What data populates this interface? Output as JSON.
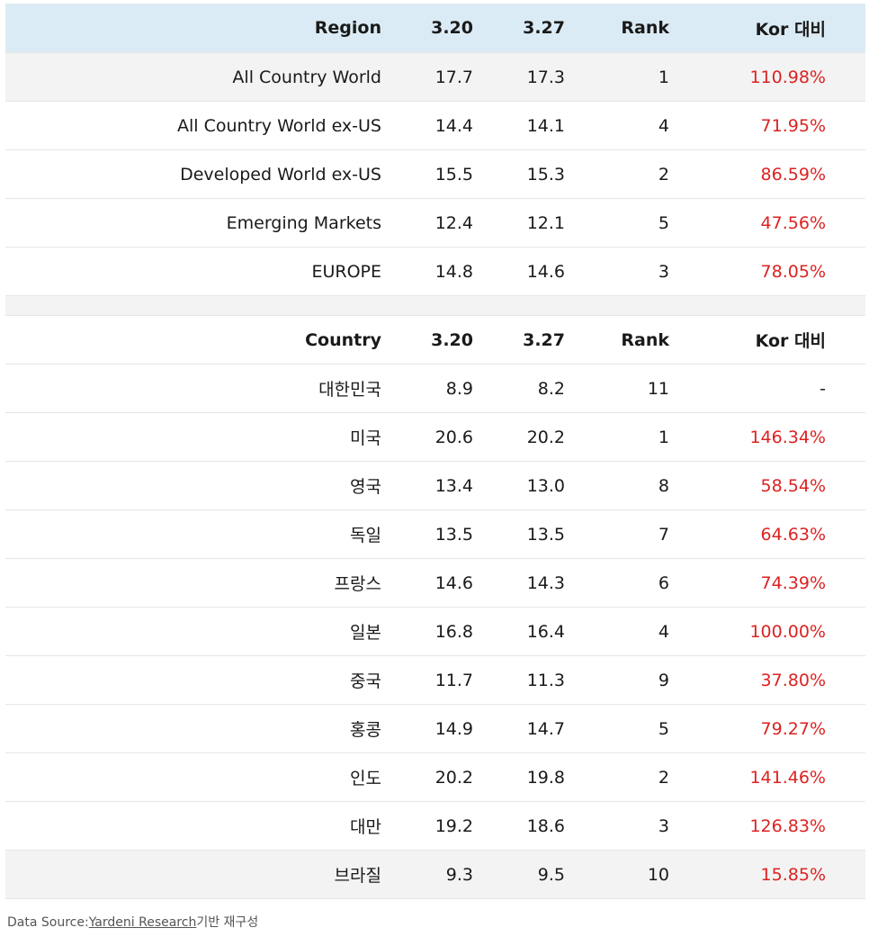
{
  "region_section": {
    "header": {
      "name": "Region",
      "col1": "3.20",
      "col2": "3.27",
      "rank": "Rank",
      "kor": "Kor 대비"
    },
    "rows": [
      {
        "name": "All Country World",
        "v1": "17.7",
        "v2": "17.3",
        "rank": "1",
        "kor": "110.98%"
      },
      {
        "name": "All Country World ex-US",
        "v1": "14.4",
        "v2": "14.1",
        "rank": "4",
        "kor": "71.95%"
      },
      {
        "name": "Developed World ex-US",
        "v1": "15.5",
        "v2": "15.3",
        "rank": "2",
        "kor": "86.59%"
      },
      {
        "name": "Emerging Markets",
        "v1": "12.4",
        "v2": "12.1",
        "rank": "5",
        "kor": "47.56%"
      },
      {
        "name": "EUROPE",
        "v1": "14.8",
        "v2": "14.6",
        "rank": "3",
        "kor": "78.05%"
      }
    ]
  },
  "country_section": {
    "header": {
      "name": "Country",
      "col1": "3.20",
      "col2": "3.27",
      "rank": "Rank",
      "kor": "Kor 대비"
    },
    "rows": [
      {
        "name": "대한민국",
        "v1": "8.9",
        "v2": "8.2",
        "rank": "11",
        "kor": "-"
      },
      {
        "name": "미국",
        "v1": "20.6",
        "v2": "20.2",
        "rank": "1",
        "kor": "146.34%"
      },
      {
        "name": "영국",
        "v1": "13.4",
        "v2": "13.0",
        "rank": "8",
        "kor": "58.54%"
      },
      {
        "name": "독일",
        "v1": "13.5",
        "v2": "13.5",
        "rank": "7",
        "kor": "64.63%"
      },
      {
        "name": "프랑스",
        "v1": "14.6",
        "v2": "14.3",
        "rank": "6",
        "kor": "74.39%"
      },
      {
        "name": "일본",
        "v1": "16.8",
        "v2": "16.4",
        "rank": "4",
        "kor": "100.00%"
      },
      {
        "name": "중국",
        "v1": "11.7",
        "v2": "11.3",
        "rank": "9",
        "kor": "37.80%"
      },
      {
        "name": "홍콩",
        "v1": "14.9",
        "v2": "14.7",
        "rank": "5",
        "kor": "79.27%"
      },
      {
        "name": "인도",
        "v1": "20.2",
        "v2": "19.8",
        "rank": "2",
        "kor": "141.46%"
      },
      {
        "name": "대만",
        "v1": "19.2",
        "v2": "18.6",
        "rank": "3",
        "kor": "126.83%"
      },
      {
        "name": "브라질",
        "v1": "9.3",
        "v2": "9.5",
        "rank": "10",
        "kor": "15.85%"
      }
    ]
  },
  "source": {
    "prefix": "Data Source:",
    "link_text": "Yardeni Research",
    "suffix": "기반 재구성"
  },
  "colors": {
    "header_bg": "#dbebf5",
    "stripe_bg": "#f3f3f3",
    "positive_text": "#dd2222"
  }
}
